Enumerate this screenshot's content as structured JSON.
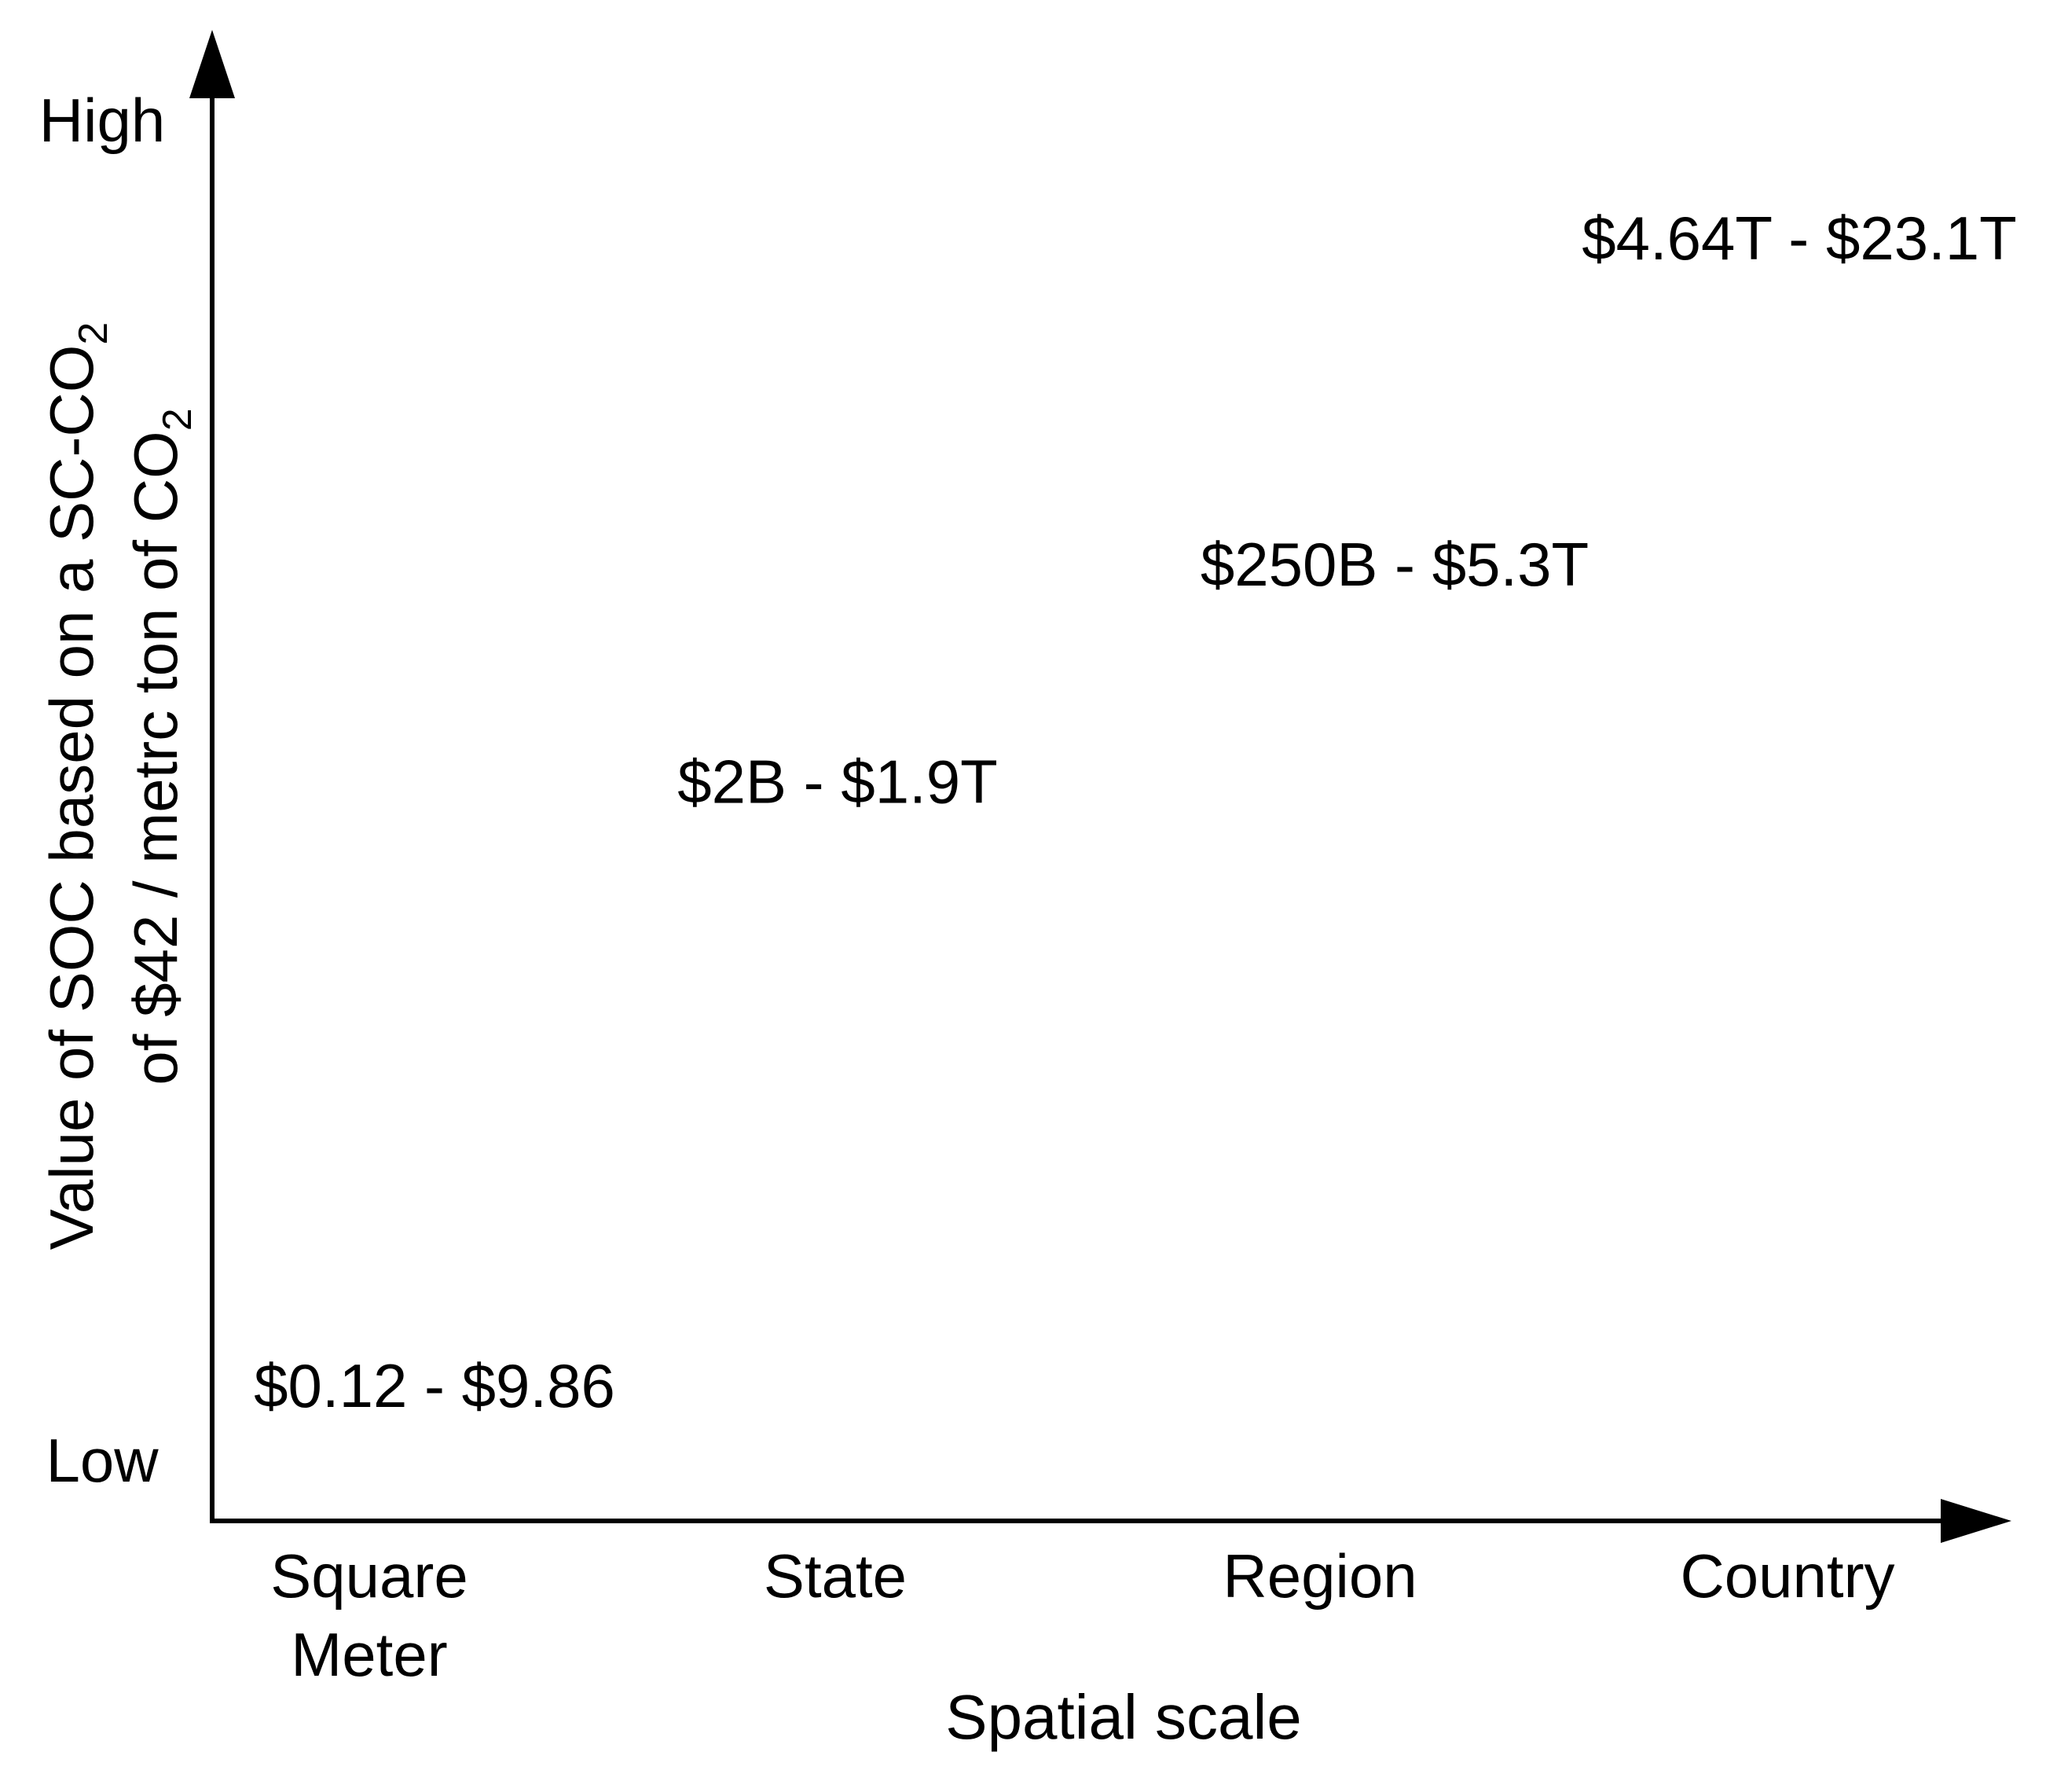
{
  "chart_data": {
    "type": "scatter",
    "title": "",
    "xlabel": "Spatial scale",
    "ylabel_line1_parts": [
      {
        "text": "Value of SOC based on a SC-CO",
        "sub": false
      },
      {
        "text": "2",
        "sub": true
      }
    ],
    "ylabel_line2_parts": [
      {
        "text": "of $42 / metrc ton of CO",
        "sub": false
      },
      {
        "text": "2",
        "sub": true
      }
    ],
    "y_tick_labels": {
      "high": "High",
      "low": "Low"
    },
    "categories": [
      [
        "Square",
        "Meter"
      ],
      [
        "State"
      ],
      [
        "Region"
      ],
      [
        "Country"
      ]
    ],
    "points": [
      {
        "category_index": 0,
        "level": 0.0,
        "label": "$0.12 - $9.86"
      },
      {
        "category_index": 1,
        "level": 0.5,
        "label": "$2B - $1.9T"
      },
      {
        "category_index": 2,
        "level": 0.68,
        "label": "$250B - $5.3T"
      },
      {
        "category_index": 3,
        "level": 0.95,
        "label": "$4.64T - $23.1T"
      }
    ],
    "grid": false,
    "legend": "none",
    "colors": {
      "axis": "#000000",
      "text": "#000000",
      "background": "#ffffff"
    }
  }
}
